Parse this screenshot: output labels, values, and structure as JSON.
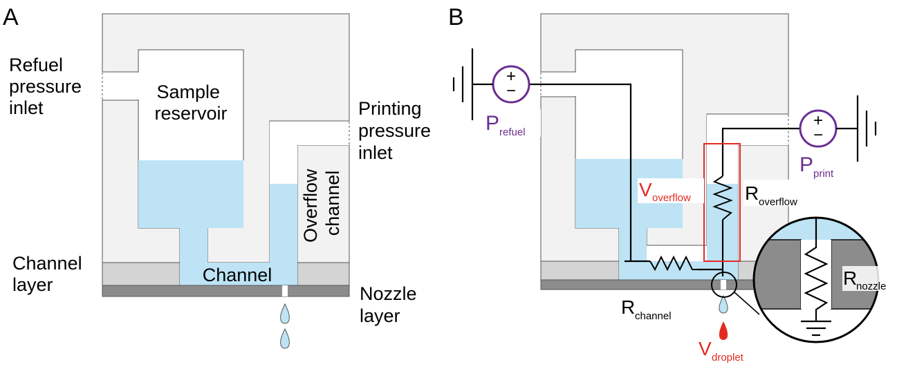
{
  "panels": {
    "a": "A",
    "b": "B"
  },
  "panel_a": {
    "refuel_inlet": [
      "Refuel",
      "pressure",
      "inlet"
    ],
    "sample_reservoir": [
      "Sample",
      "reservoir"
    ],
    "printing_inlet": [
      "Printing",
      "pressure",
      "inlet"
    ],
    "overflow_channel": [
      "Overflow",
      "channel"
    ],
    "channel": "Channel",
    "channel_layer": [
      "Channel",
      "layer"
    ],
    "nozzle_layer": [
      "Nozzle",
      "layer"
    ]
  },
  "panel_b": {
    "p_refuel": {
      "main": "P",
      "sub": "refuel"
    },
    "p_print": {
      "main": "P",
      "sub": "print"
    },
    "v_overflow": {
      "main": "V",
      "sub": "overflow"
    },
    "r_overflow": {
      "main": "R",
      "sub": "overflow"
    },
    "r_channel": {
      "main": "R",
      "sub": "channel"
    },
    "r_nozzle": {
      "main": "R",
      "sub": "nozzle"
    },
    "v_droplet": {
      "main": "V",
      "sub": "droplet"
    },
    "source_plus": "+",
    "source_minus": "−"
  },
  "colors": {
    "device": "#f2f2f2",
    "channel_layer": "#d4d4d4",
    "nozzle_layer": "#8c8c8c",
    "liquid": "#bde3f5",
    "red": "#e32a22",
    "purple": "#6a2d91"
  }
}
